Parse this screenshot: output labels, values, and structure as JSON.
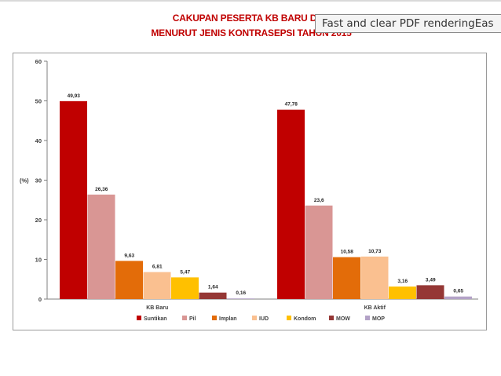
{
  "chart_data": {
    "type": "bar",
    "title_line1": "CAKUPAN PESERTA KB BARU DAN",
    "title_line2": "MENURUT JENIS KONTRASEPSI TAHUN 2015",
    "ylabel": "(%)",
    "ylim": [
      0,
      60
    ],
    "yticks": [
      "0",
      "10",
      "20",
      "30",
      "40",
      "50",
      "60"
    ],
    "categories": [
      "KB Baru",
      "KB Aktif"
    ],
    "series": [
      {
        "name": "Suntikan",
        "color": "#c00000",
        "values": [
          49.93,
          47.78
        ],
        "labels": [
          "49,93",
          "47,78"
        ]
      },
      {
        "name": "Pil",
        "color": "#d99694",
        "values": [
          26.36,
          23.6
        ],
        "labels": [
          "26,36",
          "23,6"
        ]
      },
      {
        "name": "Implan",
        "color": "#e36c09",
        "values": [
          9.63,
          10.58
        ],
        "labels": [
          "9,63",
          "10,58"
        ]
      },
      {
        "name": "IUD",
        "color": "#fac090",
        "values": [
          6.81,
          10.73
        ],
        "labels": [
          "6,81",
          "10,73"
        ]
      },
      {
        "name": "Kondom",
        "color": "#ffc000",
        "values": [
          5.47,
          3.16
        ],
        "labels": [
          "5,47",
          "3,16"
        ]
      },
      {
        "name": "MOW",
        "color": "#953735",
        "values": [
          1.64,
          3.49
        ],
        "labels": [
          "1,64",
          "3,49"
        ]
      },
      {
        "name": "MOP",
        "color": "#b3a2c7",
        "values": [
          0.16,
          0.65
        ],
        "labels": [
          "0,16",
          "0,65"
        ]
      }
    ],
    "legend_position": "bottom"
  },
  "tooltip": {
    "text": "Fast and clear PDF renderingEas"
  }
}
